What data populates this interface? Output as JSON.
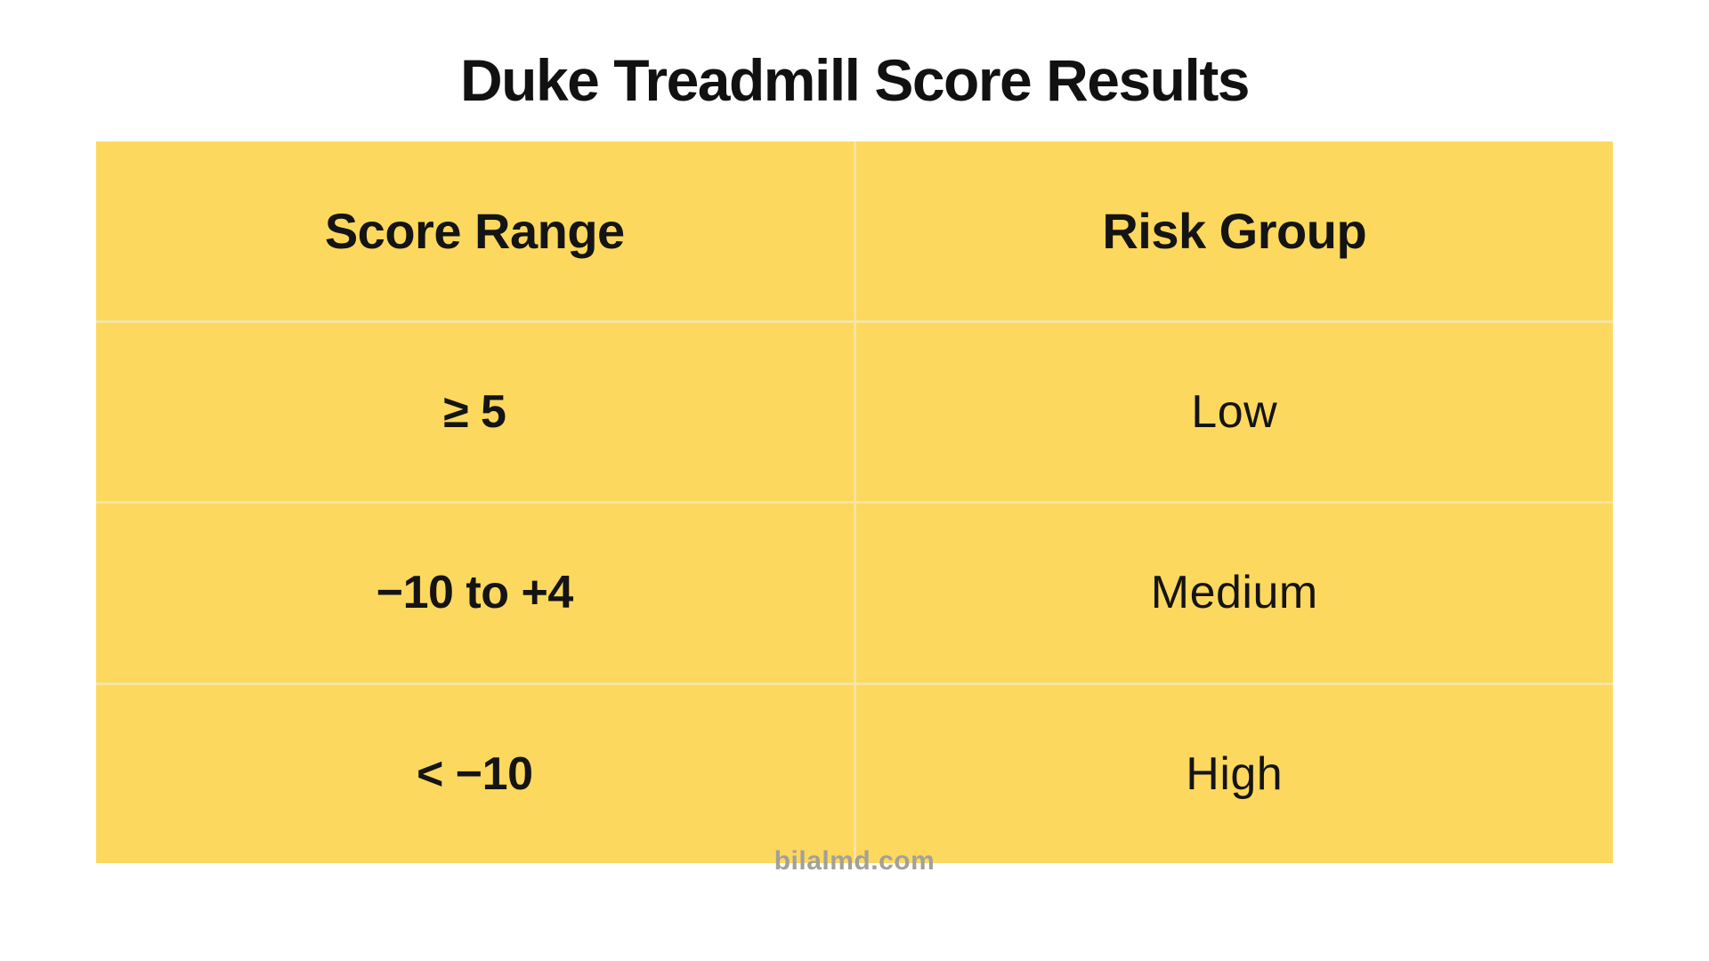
{
  "page": {
    "title": "Duke Treadmill Score Results",
    "watermark": "bilalmd.com",
    "colors": {
      "page_bg": "#ffffff",
      "table_bg": "#FDD85E",
      "divider": "#F6E4A2",
      "title_text": "#111111",
      "cell_text": "#141414",
      "watermark_text": "#A2A09A"
    }
  },
  "table": {
    "columns": [
      {
        "label": "Score Range"
      },
      {
        "label": "Risk Group"
      }
    ],
    "rows": [
      {
        "score_range": "≥ 5",
        "risk_group": "Low"
      },
      {
        "score_range": "−10 to +4",
        "risk_group": "Medium"
      },
      {
        "score_range": "< −10",
        "risk_group": "High"
      }
    ]
  },
  "chart_data": {
    "type": "table",
    "title": "Duke Treadmill Score Results",
    "columns": [
      "Score Range",
      "Risk Group"
    ],
    "rows": [
      [
        "≥ 5",
        "Low"
      ],
      [
        "−10 to +4",
        "Medium"
      ],
      [
        "< −10",
        "High"
      ]
    ],
    "layout_hints": {
      "header_bold": true,
      "score_column_bold": true,
      "risk_column_regular": true,
      "table_bg": "#FDD85E"
    }
  }
}
